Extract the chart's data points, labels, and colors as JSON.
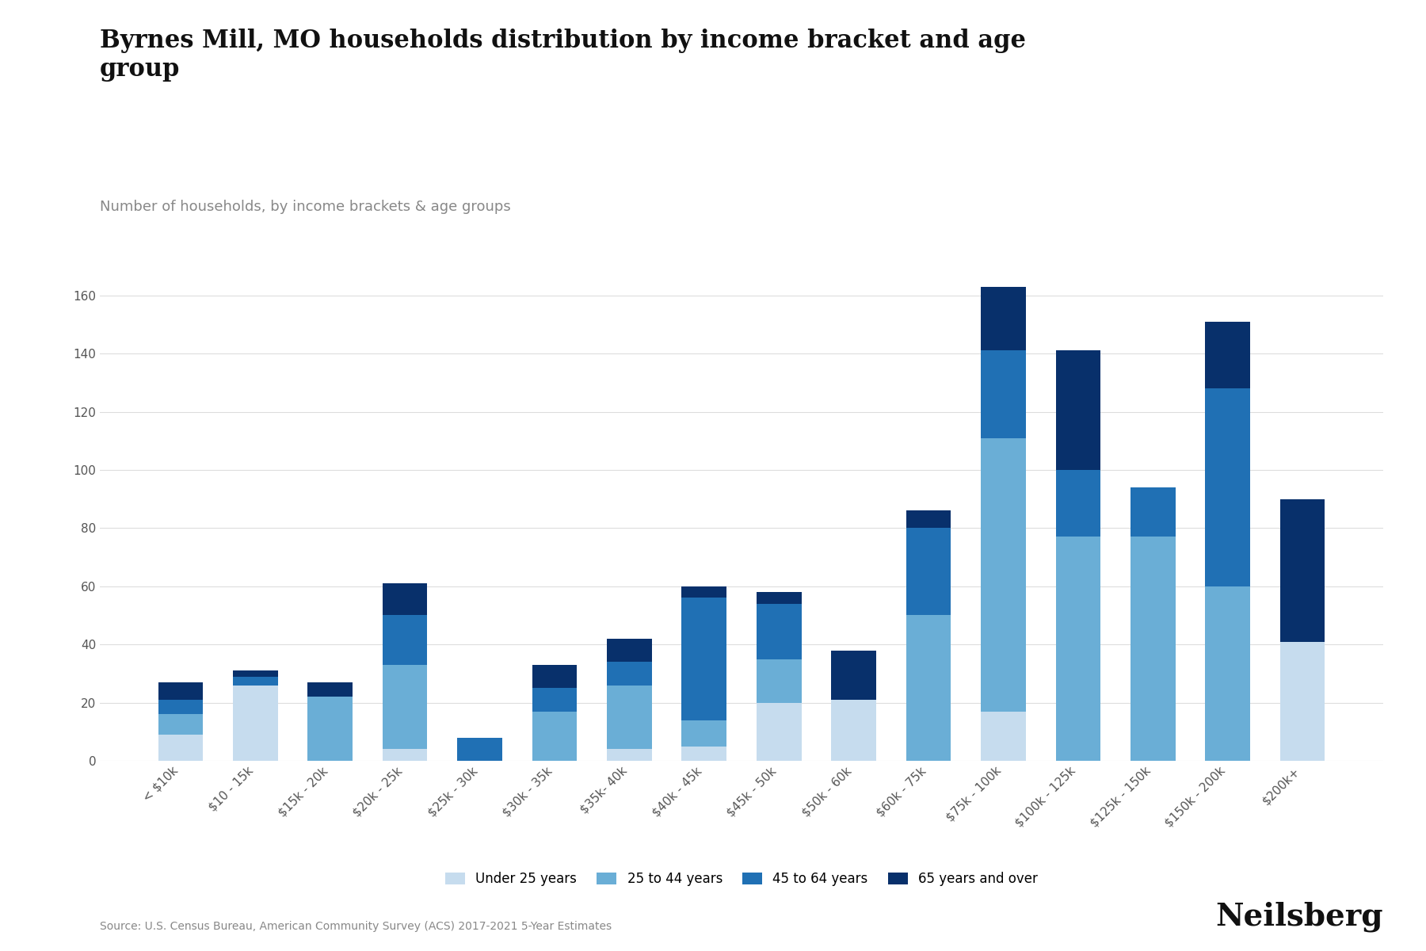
{
  "title": "Byrnes Mill, MO households distribution by income bracket and age\ngroup",
  "subtitle": "Number of households, by income brackets & age groups",
  "source": "Source: U.S. Census Bureau, American Community Survey (ACS) 2017-2021 5-Year Estimates",
  "categories": [
    "< $10k",
    "$10 - 15k",
    "$15k - 20k",
    "$20k - 25k",
    "$25k - 30k",
    "$30k - 35k",
    "$35k- 40k",
    "$40k - 45k",
    "$45k - 50k",
    "$50k - 60k",
    "$60k - 75k",
    "$75k - 100k",
    "$100k - 125k",
    "$125k - 150k",
    "$150k - 200k",
    "$200k+"
  ],
  "under25": [
    9,
    26,
    0,
    4,
    0,
    0,
    4,
    5,
    20,
    21,
    0,
    17,
    0,
    0,
    0,
    41
  ],
  "age25to44": [
    7,
    0,
    22,
    29,
    0,
    17,
    22,
    9,
    15,
    0,
    50,
    94,
    77,
    77,
    60,
    0
  ],
  "age45to64": [
    5,
    3,
    0,
    17,
    8,
    8,
    8,
    42,
    19,
    0,
    30,
    30,
    23,
    17,
    68,
    0
  ],
  "age65plus": [
    6,
    2,
    5,
    11,
    0,
    8,
    8,
    4,
    4,
    17,
    6,
    22,
    41,
    0,
    23,
    49
  ],
  "colors": {
    "under25": "#c6dcee",
    "age25to44": "#6aaed6",
    "age45to64": "#2070b4",
    "age65plus": "#08306b"
  },
  "legend_labels": [
    "Under 25 years",
    "25 to 44 years",
    "45 to 64 years",
    "65 years and over"
  ],
  "ylim": [
    0,
    170
  ],
  "yticks": [
    0,
    20,
    40,
    60,
    80,
    100,
    120,
    140,
    160
  ],
  "background_color": "#ffffff",
  "grid_color": "#dddddd",
  "title_fontsize": 22,
  "subtitle_fontsize": 13,
  "tick_fontsize": 11,
  "source_fontsize": 10,
  "brand": "Neilsberg",
  "brand_fontsize": 28
}
